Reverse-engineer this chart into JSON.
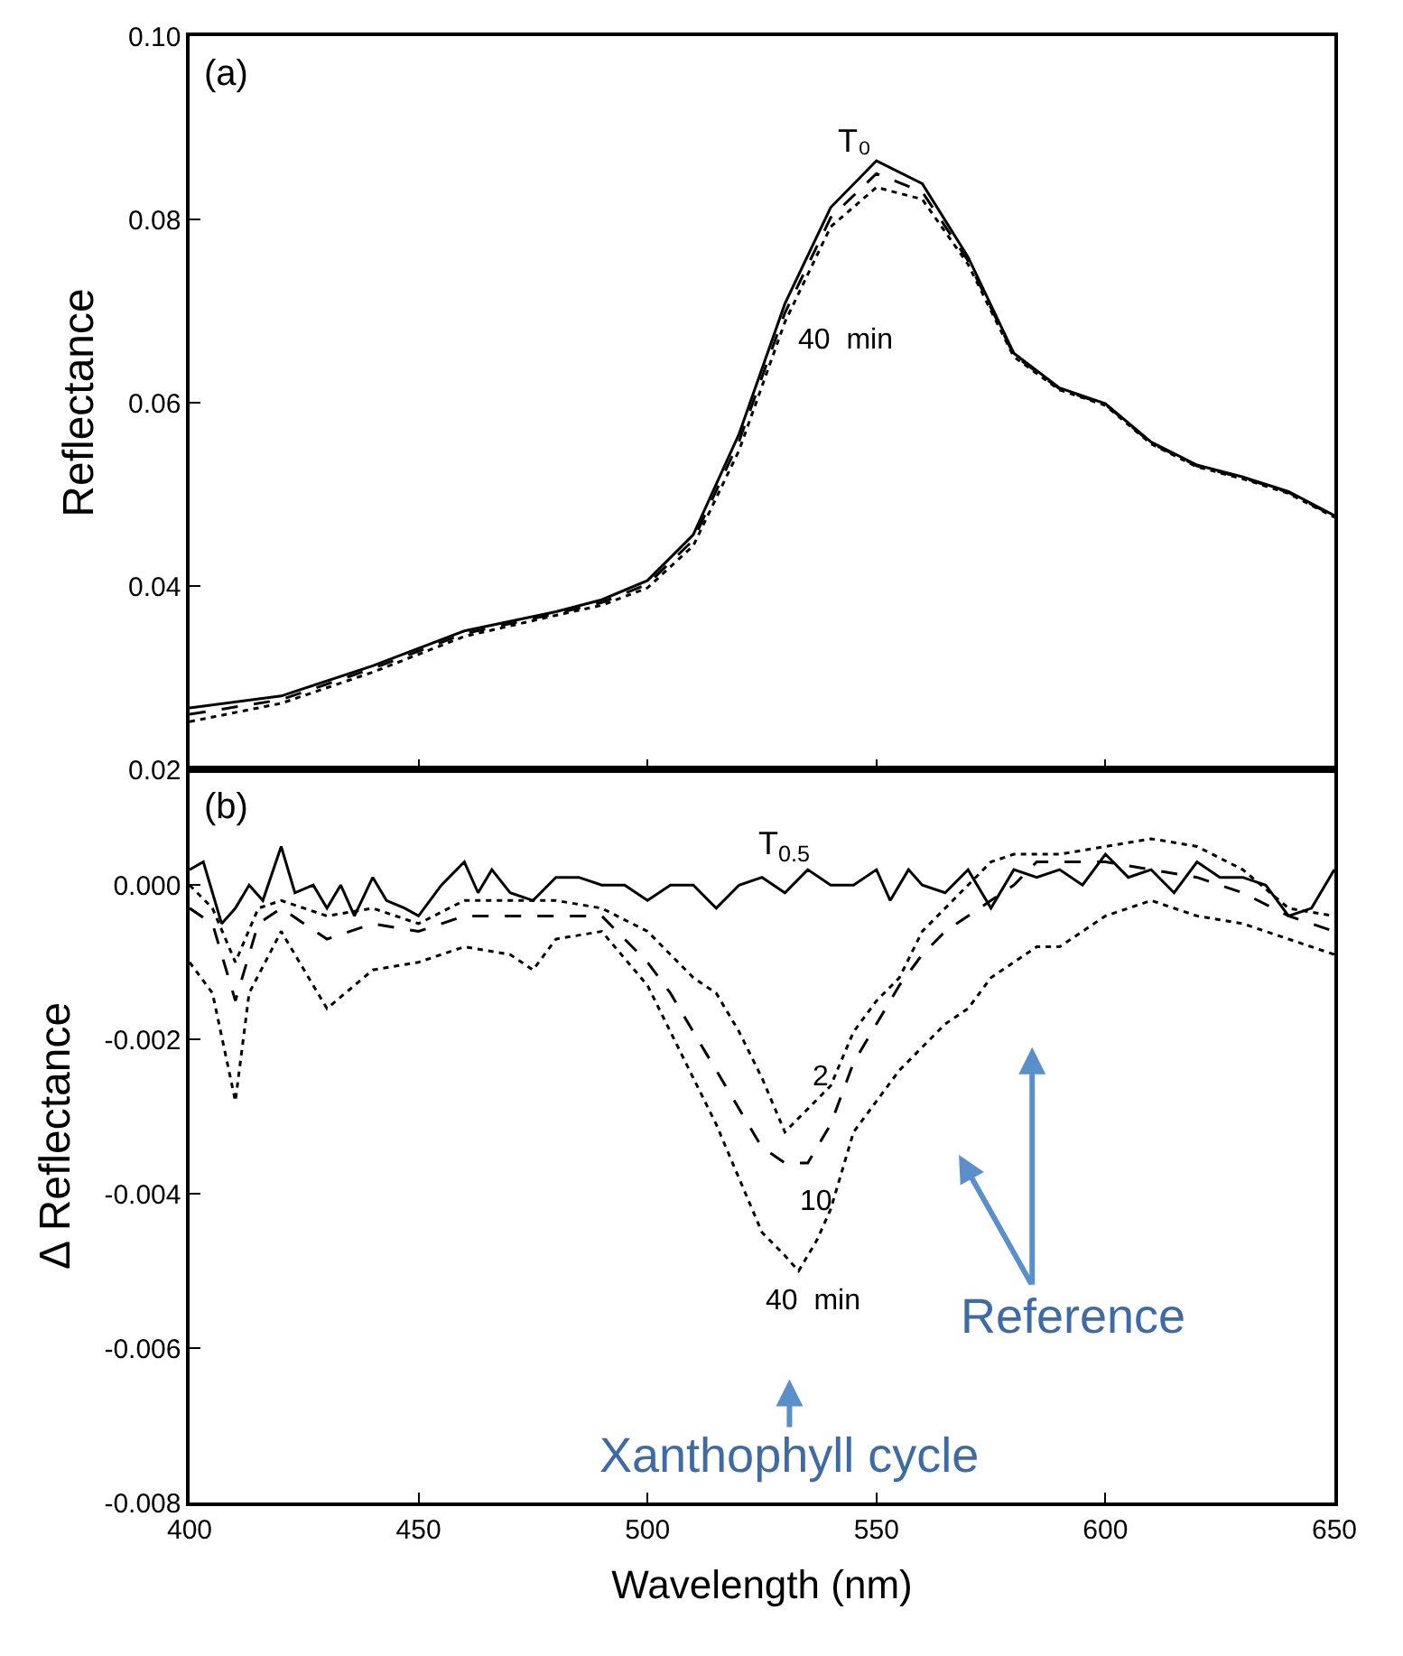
{
  "chart_data": [
    {
      "type": "line",
      "ylabel": "Reflectance",
      "xlim": [
        400,
        650
      ],
      "ylim": [
        0.02,
        0.1
      ],
      "tick_labels": "y",
      "xticks": [
        400,
        450,
        500,
        550,
        600,
        650
      ],
      "yticks": [
        {
          "value": 0.02,
          "label": "0.02"
        },
        {
          "value": 0.04,
          "label": "0.04"
        },
        {
          "value": 0.06,
          "label": "0.06"
        },
        {
          "value": 0.08,
          "label": "0.08"
        },
        {
          "value": 0.1,
          "label": "0.10"
        }
      ],
      "x": [
        400,
        420,
        440,
        460,
        480,
        490,
        500,
        510,
        520,
        530,
        540,
        550,
        560,
        570,
        580,
        590,
        600,
        610,
        620,
        630,
        640,
        650
      ],
      "series": [
        {
          "color": "#000000",
          "line_style": "solid",
          "values": [
            0.0267,
            0.028,
            0.0313,
            0.0351,
            0.0372,
            0.0385,
            0.0406,
            0.0456,
            0.0566,
            0.0708,
            0.0813,
            0.0864,
            0.0839,
            0.0759,
            0.0654,
            0.0616,
            0.0599,
            0.0557,
            0.0532,
            0.0519,
            0.0503,
            0.0477
          ]
        },
        {
          "color": "#000000",
          "line_style": "dashed",
          "values": [
            0.026,
            0.0276,
            0.031,
            0.0348,
            0.037,
            0.0382,
            0.0402,
            0.045,
            0.0558,
            0.0698,
            0.0802,
            0.085,
            0.083,
            0.0755,
            0.0652,
            0.0615,
            0.0598,
            0.0556,
            0.0531,
            0.0518,
            0.0502,
            0.0476
          ]
        },
        {
          "color": "#000000",
          "line_style": "dotted",
          "values": [
            0.0252,
            0.0272,
            0.0306,
            0.0345,
            0.0368,
            0.0379,
            0.0398,
            0.0444,
            0.0548,
            0.0688,
            0.0792,
            0.0835,
            0.0822,
            0.0751,
            0.065,
            0.0614,
            0.0597,
            0.0555,
            0.053,
            0.0517,
            0.0501,
            0.0475
          ]
        }
      ],
      "annotations": [
        "(a)",
        "T₀",
        "40  min"
      ]
    },
    {
      "type": "line",
      "xlabel": "Wavelength (nm)",
      "ylabel": "Δ Reflectance",
      "xlim": [
        400,
        650
      ],
      "ylim": [
        -0.008,
        0.0015
      ],
      "xticks": [
        400,
        450,
        500,
        550,
        600,
        650
      ],
      "yticks": [
        {
          "value": -0.008,
          "label": "-0.008"
        },
        {
          "value": -0.006,
          "label": "-0.006"
        },
        {
          "value": -0.004,
          "label": "-0.004"
        },
        {
          "value": -0.002,
          "label": "-0.002"
        },
        {
          "value": 0,
          "label": "0.000"
        }
      ],
      "series": [
        {
          "color": "#000000",
          "line_style": "solid",
          "x": [
            400,
            403,
            407,
            410,
            413,
            416,
            420,
            423,
            427,
            430,
            433,
            436,
            440,
            443,
            447,
            450,
            455,
            460,
            463,
            466,
            470,
            475,
            480,
            485,
            490,
            495,
            500,
            505,
            510,
            515,
            520,
            525,
            530,
            535,
            540,
            545,
            550,
            553,
            557,
            560,
            565,
            570,
            575,
            580,
            585,
            590,
            595,
            600,
            605,
            610,
            615,
            620,
            625,
            630,
            635,
            640,
            645,
            650
          ],
          "values": [
            0.0002,
            0.0003,
            -0.0005,
            -0.0003,
            0.0,
            -0.0002,
            0.0005,
            -0.0001,
            0.0,
            -0.0003,
            0.0,
            -0.0004,
            0.0001,
            -0.0002,
            -0.0003,
            -0.0004,
            0.0,
            0.0003,
            -0.0001,
            0.0002,
            -0.0001,
            -0.0002,
            0.0001,
            0.0001,
            0.0,
            0.0,
            -0.0002,
            0.0,
            0.0,
            -0.0003,
            0.0,
            0.0001,
            -0.0001,
            0.0002,
            0.0,
            0.0,
            0.0002,
            -0.0002,
            0.0002,
            0.0,
            -0.0001,
            0.0002,
            -0.0003,
            0.0002,
            0.0001,
            0.0002,
            0.0,
            0.0004,
            0.0001,
            0.0002,
            -0.0001,
            0.0003,
            0.0001,
            0.0001,
            0.0,
            -0.0004,
            -0.0003,
            0.0002
          ]
        },
        {
          "color": "#000000",
          "line_style": "dotted",
          "x": [
            400,
            405,
            410,
            415,
            420,
            430,
            440,
            450,
            460,
            470,
            480,
            490,
            500,
            510,
            515,
            520,
            525,
            530,
            535,
            540,
            545,
            550,
            555,
            560,
            565,
            570,
            575,
            580,
            590,
            600,
            610,
            620,
            630,
            640,
            650
          ],
          "values": [
            0.0,
            -0.0003,
            -0.001,
            -0.0003,
            -0.0002,
            -0.0004,
            -0.0003,
            -0.0005,
            -0.0002,
            -0.0002,
            -0.0002,
            -0.0003,
            -0.0006,
            -0.0012,
            -0.0014,
            -0.0019,
            -0.0025,
            -0.0032,
            -0.0029,
            -0.0026,
            -0.0019,
            -0.0015,
            -0.0012,
            -0.0006,
            -0.0003,
            0.0,
            0.0003,
            0.0004,
            0.0004,
            0.0005,
            0.0006,
            0.0005,
            0.0002,
            -0.0003,
            -0.0004
          ]
        },
        {
          "color": "#000000",
          "line_style": "dashed",
          "x": [
            400,
            405,
            410,
            415,
            420,
            430,
            440,
            450,
            460,
            470,
            480,
            490,
            500,
            505,
            510,
            515,
            520,
            525,
            530,
            535,
            540,
            545,
            550,
            555,
            560,
            565,
            570,
            575,
            580,
            585,
            590,
            600,
            610,
            620,
            630,
            640,
            650
          ],
          "values": [
            -0.0003,
            -0.0005,
            -0.0015,
            -0.0005,
            -0.0003,
            -0.0007,
            -0.0005,
            -0.0006,
            -0.0004,
            -0.0004,
            -0.0004,
            -0.0004,
            -0.001,
            -0.0014,
            -0.0019,
            -0.0024,
            -0.0029,
            -0.0034,
            -0.0036,
            -0.0036,
            -0.0031,
            -0.0023,
            -0.0018,
            -0.0013,
            -0.0009,
            -0.0006,
            -0.0004,
            -0.0002,
            0.0,
            0.0003,
            0.0003,
            0.0003,
            0.0002,
            0.0001,
            -0.0001,
            -0.0004,
            -0.0006
          ]
        },
        {
          "color": "#000000",
          "line_style": "dotted",
          "x": [
            400,
            405,
            410,
            413,
            420,
            430,
            440,
            450,
            460,
            470,
            475,
            480,
            490,
            500,
            505,
            510,
            515,
            520,
            525,
            530,
            533,
            537,
            540,
            545,
            550,
            555,
            560,
            565,
            570,
            575,
            580,
            585,
            590,
            595,
            600,
            610,
            620,
            630,
            640,
            650
          ],
          "values": [
            -0.001,
            -0.0014,
            -0.0028,
            -0.0014,
            -0.0006,
            -0.0016,
            -0.0011,
            -0.001,
            -0.0008,
            -0.0009,
            -0.0011,
            -0.0007,
            -0.0006,
            -0.0013,
            -0.0019,
            -0.0025,
            -0.0031,
            -0.0038,
            -0.0045,
            -0.0048,
            -0.005,
            -0.0046,
            -0.0042,
            -0.0032,
            -0.0028,
            -0.0024,
            -0.0021,
            -0.0018,
            -0.0016,
            -0.0012,
            -0.001,
            -0.0008,
            -0.0008,
            -0.0006,
            -0.0004,
            -0.0002,
            -0.0004,
            -0.0005,
            -0.0007,
            -0.0009
          ]
        }
      ],
      "annotations": [
        "(b)",
        "T$_{0.5}$",
        "2",
        "10",
        "40  min",
        "Xanthophyll cycle",
        "Reference"
      ]
    }
  ]
}
